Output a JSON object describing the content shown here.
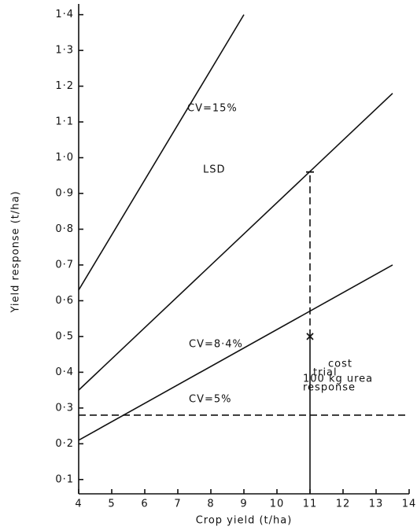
{
  "chart_data": {
    "type": "line",
    "xlabel": "Crop yield (t/ha)",
    "ylabel": "Yield response (t/ha)",
    "xlim": [
      4,
      14
    ],
    "ylim": [
      0.06,
      1.43
    ],
    "xticks": [
      4,
      5,
      6,
      7,
      8,
      9,
      10,
      11,
      12,
      13,
      14
    ],
    "yticks": [
      {
        "value": 0.1,
        "label": "0·1"
      },
      {
        "value": 0.2,
        "label": "0·2"
      },
      {
        "value": 0.3,
        "label": "0·3"
      },
      {
        "value": 0.4,
        "label": "0·4"
      },
      {
        "value": 0.5,
        "label": "0·5"
      },
      {
        "value": 0.6,
        "label": "0·6"
      },
      {
        "value": 0.7,
        "label": "0·7"
      },
      {
        "value": 0.8,
        "label": "0·8"
      },
      {
        "value": 0.9,
        "label": "0·9"
      },
      {
        "value": 1.0,
        "label": "1·0"
      },
      {
        "value": 1.1,
        "label": "1·1"
      },
      {
        "value": 1.2,
        "label": "1·2"
      },
      {
        "value": 1.3,
        "label": "1·3"
      },
      {
        "value": 1.4,
        "label": "1·4"
      }
    ],
    "color": "#111111",
    "series": [
      {
        "x": [
          4,
          9
        ],
        "values": [
          0.63,
          1.4
        ],
        "style": "solid"
      },
      {
        "x": [
          4,
          13.5
        ],
        "values": [
          0.35,
          1.18
        ],
        "style": "solid"
      },
      {
        "x": [
          4,
          13.5
        ],
        "values": [
          0.21,
          0.7
        ],
        "style": "solid"
      },
      {
        "x": [
          4,
          14
        ],
        "values": [
          0.28,
          0.28
        ],
        "style": "dashed"
      },
      {
        "x": [
          11,
          11
        ],
        "values": [
          0.5,
          0.96
        ],
        "style": "dashed"
      },
      {
        "x": [
          11,
          11
        ],
        "values": [
          0.06,
          0.5
        ],
        "style": "solid"
      }
    ],
    "points": [
      {
        "x": 11,
        "value": 0.5,
        "marker": "x"
      },
      {
        "x": 11,
        "value": 0.96,
        "marker": "tick"
      }
    ],
    "annotations": [
      "CV=15%",
      "CV=8·4%",
      "CV=5%",
      "LSD",
      "trial",
      "response",
      "cost",
      "100 kg urea"
    ]
  }
}
